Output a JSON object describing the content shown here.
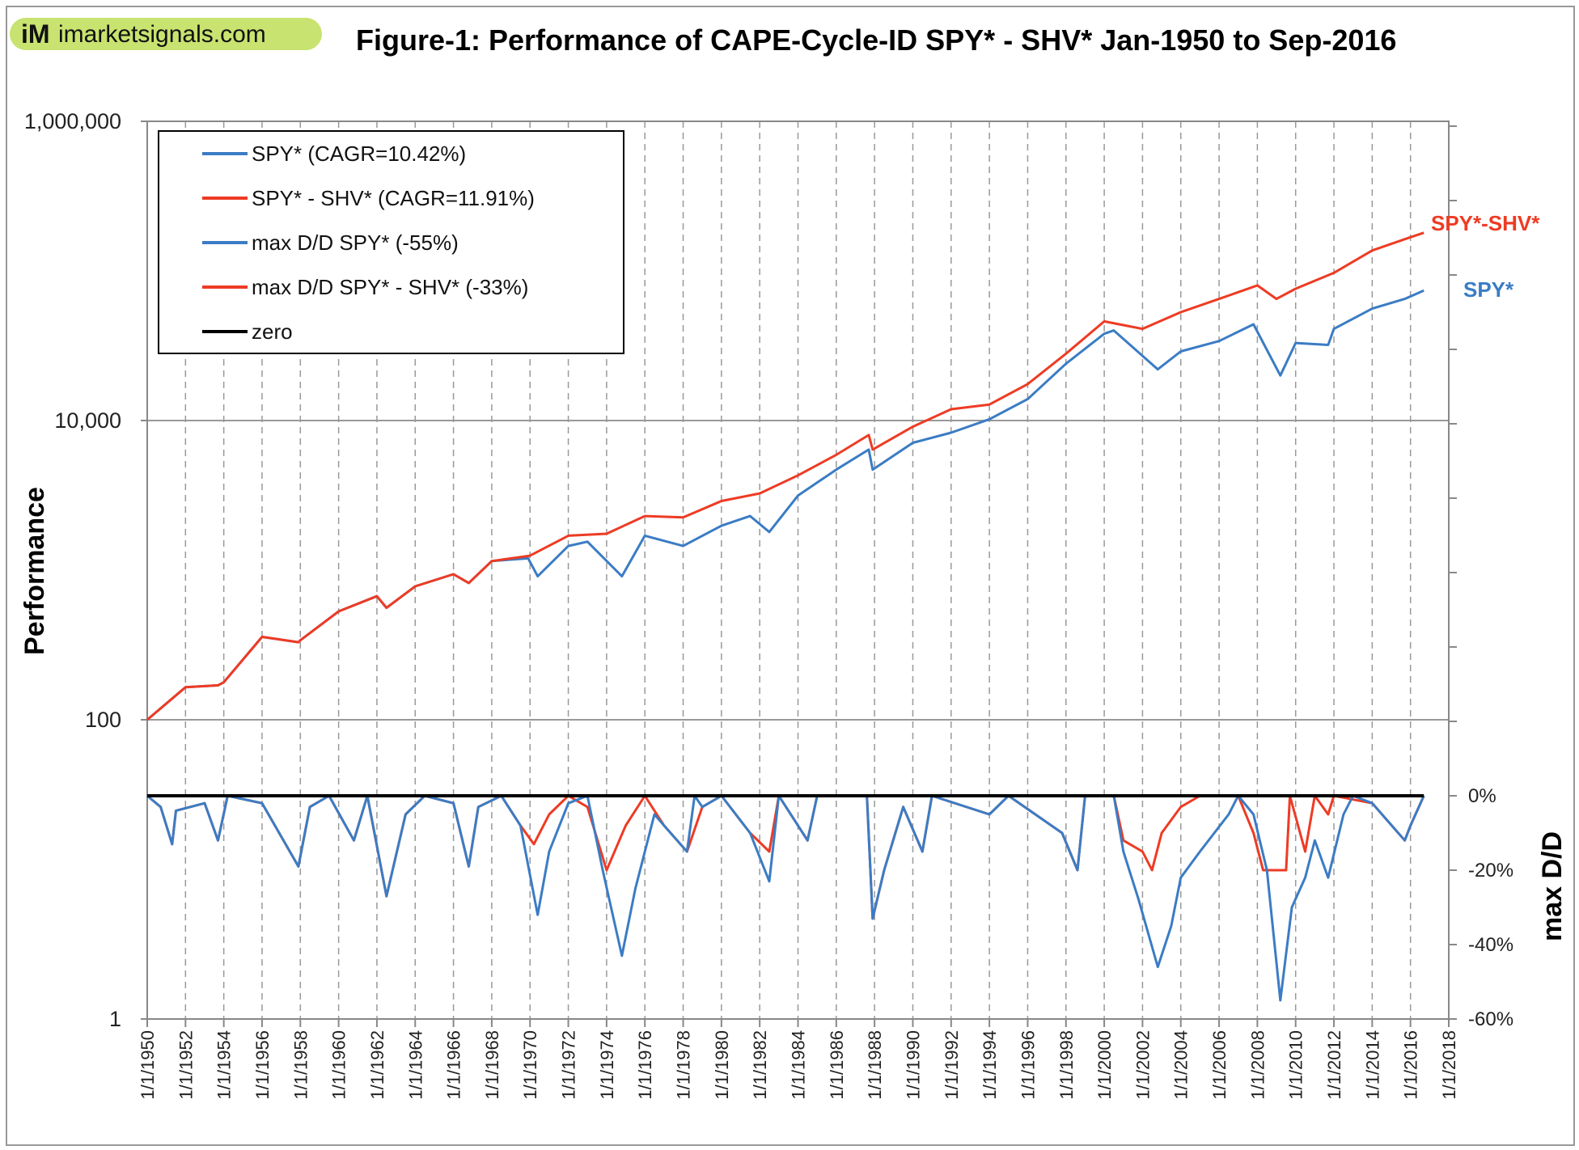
{
  "logo": {
    "text": "iM imarketsignals.com",
    "mark": "iM",
    "name": "imarketsignals.com",
    "bg_color": "#c8e36f"
  },
  "chart_data": {
    "title": "Figure-1:  Performance of CAPE-Cycle-ID  SPY* - SHV*   Jan-1950 to Sep-2016",
    "type": "line",
    "ylabel_left": "Performance",
    "ylabel_right": "max D/D",
    "left_axis": {
      "scale": "log",
      "range": [
        1,
        1000000
      ],
      "ticks": [
        {
          "v": 1000000,
          "label": "1,000,000"
        },
        {
          "v": 10000,
          "label": "10,000"
        },
        {
          "v": 100,
          "label": "100"
        },
        {
          "v": 1,
          "label": "1"
        }
      ]
    },
    "right_axis": {
      "range_percent": [
        -60,
        181
      ],
      "ticks": [
        {
          "v": 0,
          "label": "0%"
        },
        {
          "v": -20,
          "label": "-20%"
        },
        {
          "v": -40,
          "label": "-40%"
        },
        {
          "v": -60,
          "label": "-60%"
        }
      ]
    },
    "x_axis": {
      "range": [
        1950,
        2018
      ],
      "tick_labels": [
        "1/1/1950",
        "1/1/1952",
        "1/1/1954",
        "1/1/1956",
        "1/1/1958",
        "1/1/1960",
        "1/1/1962",
        "1/1/1964",
        "1/1/1966",
        "1/1/1968",
        "1/1/1970",
        "1/1/1972",
        "1/1/1974",
        "1/1/1976",
        "1/1/1978",
        "1/1/1980",
        "1/1/1982",
        "1/1/1984",
        "1/1/1986",
        "1/1/1988",
        "1/1/1990",
        "1/1/1992",
        "1/1/1994",
        "1/1/1996",
        "1/1/1998",
        "1/1/2000",
        "1/1/2002",
        "1/1/2004",
        "1/1/2006",
        "1/1/2008",
        "1/1/2010",
        "1/1/2012",
        "1/1/2014",
        "1/1/2016",
        "1/1/2018"
      ],
      "grid": "vertical dashed every 2 years"
    },
    "colors": {
      "blue": "#3b7cc4",
      "red": "#ee3b24",
      "zero": "#000000"
    },
    "legend": {
      "placement": "top-left",
      "entries": [
        {
          "label": "SPY*  (CAGR=10.42%)",
          "color": "#3b7cc4"
        },
        {
          "label": "SPY* - SHV*  (CAGR=11.91%)",
          "color": "#ee3b24"
        },
        {
          "label": "max D/D  SPY*  (-55%)",
          "color": "#3b7cc4"
        },
        {
          "label": "max D/D  SPY* - SHV*  (-33%)",
          "color": "#ee3b24"
        },
        {
          "label": "zero",
          "color": "#000000"
        }
      ]
    },
    "series_labels": {
      "red": "SPY*-SHV*",
      "blue": "SPY*"
    },
    "series": [
      {
        "name": "SPY*",
        "axis": "left",
        "color": "#3b7cc4",
        "points": [
          [
            1950,
            100
          ],
          [
            1952,
            165
          ],
          [
            1953.7,
            170
          ],
          [
            1954,
            178
          ],
          [
            1956,
            358
          ],
          [
            1957.9,
            330
          ],
          [
            1958,
            340
          ],
          [
            1960,
            530
          ],
          [
            1962,
            670
          ],
          [
            1962.5,
            560
          ],
          [
            1964,
            780
          ],
          [
            1966,
            940
          ],
          [
            1966.8,
            820
          ],
          [
            1968,
            1150
          ],
          [
            1969.9,
            1200
          ],
          [
            1970.4,
            910
          ],
          [
            1972,
            1450
          ],
          [
            1973,
            1550
          ],
          [
            1974.8,
            910
          ],
          [
            1976,
            1700
          ],
          [
            1978,
            1450
          ],
          [
            1980,
            1980
          ],
          [
            1981.5,
            2300
          ],
          [
            1982.5,
            1800
          ],
          [
            1984,
            3150
          ],
          [
            1986,
            4700
          ],
          [
            1987.7,
            6400
          ],
          [
            1987.9,
            4700
          ],
          [
            1990,
            7100
          ],
          [
            1992,
            8300
          ],
          [
            1994,
            10200
          ],
          [
            1996,
            13900
          ],
          [
            1998,
            24000
          ],
          [
            2000,
            38000
          ],
          [
            2000.5,
            40000
          ],
          [
            2002.8,
            22000
          ],
          [
            2004,
            29000
          ],
          [
            2006,
            34000
          ],
          [
            2007.8,
            44000
          ],
          [
            2009.2,
            20000
          ],
          [
            2010,
            33000
          ],
          [
            2011.7,
            32000
          ],
          [
            2012,
            41000
          ],
          [
            2014,
            56000
          ],
          [
            2015.7,
            65000
          ],
          [
            2016.7,
            74000
          ]
        ]
      },
      {
        "name": "SPY* - SHV*",
        "axis": "left",
        "color": "#ee3b24",
        "points": [
          [
            1950,
            100
          ],
          [
            1952,
            165
          ],
          [
            1953.7,
            170
          ],
          [
            1954,
            178
          ],
          [
            1956,
            358
          ],
          [
            1957.9,
            330
          ],
          [
            1958,
            340
          ],
          [
            1960,
            530
          ],
          [
            1962,
            670
          ],
          [
            1962.5,
            560
          ],
          [
            1964,
            780
          ],
          [
            1966,
            940
          ],
          [
            1966.8,
            820
          ],
          [
            1968,
            1150
          ],
          [
            1970,
            1250
          ],
          [
            1972,
            1700
          ],
          [
            1974,
            1750
          ],
          [
            1976,
            2300
          ],
          [
            1978,
            2250
          ],
          [
            1980,
            2900
          ],
          [
            1982,
            3260
          ],
          [
            1984,
            4300
          ],
          [
            1986,
            5900
          ],
          [
            1987.7,
            8000
          ],
          [
            1987.9,
            6400
          ],
          [
            1990,
            9100
          ],
          [
            1992,
            11900
          ],
          [
            1994,
            12800
          ],
          [
            1996,
            17500
          ],
          [
            1998,
            28000
          ],
          [
            2000,
            46000
          ],
          [
            2002,
            41000
          ],
          [
            2004,
            53000
          ],
          [
            2006,
            65000
          ],
          [
            2008,
            80000
          ],
          [
            2009,
            65000
          ],
          [
            2010,
            76000
          ],
          [
            2012,
            97000
          ],
          [
            2014,
            137000
          ],
          [
            2016,
            168000
          ],
          [
            2016.7,
            180000
          ]
        ]
      },
      {
        "name": "max D/D SPY*",
        "axis": "right",
        "color": "#3b7cc4",
        "points": [
          [
            1950,
            0
          ],
          [
            1950.7,
            -3
          ],
          [
            1951.3,
            -13
          ],
          [
            1951.5,
            -4
          ],
          [
            1953,
            -2
          ],
          [
            1953.7,
            -12
          ],
          [
            1954.2,
            0
          ],
          [
            1956,
            -2
          ],
          [
            1957.9,
            -19
          ],
          [
            1958.5,
            -3
          ],
          [
            1959.5,
            0
          ],
          [
            1960.8,
            -12
          ],
          [
            1961.5,
            0
          ],
          [
            1962.5,
            -27
          ],
          [
            1963.5,
            -5
          ],
          [
            1964.5,
            0
          ],
          [
            1966,
            -2
          ],
          [
            1966.8,
            -19
          ],
          [
            1967.3,
            -3
          ],
          [
            1968.5,
            0
          ],
          [
            1969.5,
            -8
          ],
          [
            1970.4,
            -32
          ],
          [
            1971,
            -15
          ],
          [
            1972,
            -2
          ],
          [
            1973,
            0
          ],
          [
            1973.8,
            -20
          ],
          [
            1974.8,
            -43
          ],
          [
            1975.5,
            -25
          ],
          [
            1976.5,
            -5
          ],
          [
            1977,
            -8
          ],
          [
            1978.2,
            -15
          ],
          [
            1978.6,
            0
          ],
          [
            1979,
            -3
          ],
          [
            1980,
            0
          ],
          [
            1981.5,
            -10
          ],
          [
            1982.5,
            -23
          ],
          [
            1983,
            0
          ],
          [
            1984.5,
            -12
          ],
          [
            1985,
            0
          ],
          [
            1987.6,
            0
          ],
          [
            1987.9,
            -33
          ],
          [
            1988.5,
            -20
          ],
          [
            1989.5,
            -3
          ],
          [
            1990.5,
            -15
          ],
          [
            1991,
            0
          ],
          [
            1994,
            -5
          ],
          [
            1995,
            0
          ],
          [
            1997.8,
            -10
          ],
          [
            1998.6,
            -20
          ],
          [
            1999,
            0
          ],
          [
            2000.5,
            0
          ],
          [
            2001,
            -15
          ],
          [
            2001.8,
            -28
          ],
          [
            2002.8,
            -46
          ],
          [
            2003.5,
            -35
          ],
          [
            2004,
            -22
          ],
          [
            2005,
            -15
          ],
          [
            2006.5,
            -5
          ],
          [
            2007,
            0
          ],
          [
            2007.8,
            -5
          ],
          [
            2008.5,
            -20
          ],
          [
            2009.2,
            -55
          ],
          [
            2009.8,
            -30
          ],
          [
            2010.5,
            -22
          ],
          [
            2011,
            -12
          ],
          [
            2011.7,
            -22
          ],
          [
            2012.5,
            -5
          ],
          [
            2013,
            0
          ],
          [
            2014,
            -2
          ],
          [
            2015.7,
            -12
          ],
          [
            2016,
            -8
          ],
          [
            2016.7,
            0
          ]
        ]
      },
      {
        "name": "max D/D SPY* - SHV*",
        "axis": "right",
        "color": "#ee3b24",
        "points": [
          [
            1950,
            0
          ],
          [
            1950.7,
            -3
          ],
          [
            1951.3,
            -13
          ],
          [
            1951.5,
            -4
          ],
          [
            1953,
            -2
          ],
          [
            1953.7,
            -12
          ],
          [
            1954.2,
            0
          ],
          [
            1956,
            -2
          ],
          [
            1957.9,
            -19
          ],
          [
            1958.5,
            -3
          ],
          [
            1959.5,
            0
          ],
          [
            1960.8,
            -12
          ],
          [
            1961.5,
            0
          ],
          [
            1962.5,
            -27
          ],
          [
            1963.5,
            -5
          ],
          [
            1964.5,
            0
          ],
          [
            1966,
            -2
          ],
          [
            1966.8,
            -19
          ],
          [
            1967.3,
            -3
          ],
          [
            1968.5,
            0
          ],
          [
            1969.5,
            -8
          ],
          [
            1970.2,
            -13
          ],
          [
            1971,
            -5
          ],
          [
            1972,
            0
          ],
          [
            1973,
            -3
          ],
          [
            1974,
            -20
          ],
          [
            1975,
            -8
          ],
          [
            1976,
            0
          ],
          [
            1977,
            -8
          ],
          [
            1978.2,
            -15
          ],
          [
            1979,
            -3
          ],
          [
            1980,
            0
          ],
          [
            1981.5,
            -10
          ],
          [
            1982.5,
            -15
          ],
          [
            1983,
            0
          ],
          [
            1984.5,
            -12
          ],
          [
            1985,
            0
          ],
          [
            1987.6,
            0
          ],
          [
            1987.9,
            -33
          ],
          [
            1988.5,
            -20
          ],
          [
            1989.5,
            -3
          ],
          [
            1990.5,
            -15
          ],
          [
            1991,
            0
          ],
          [
            1994,
            -5
          ],
          [
            1995,
            0
          ],
          [
            1997.8,
            -10
          ],
          [
            1998.6,
            -20
          ],
          [
            1999,
            0
          ],
          [
            2000.5,
            0
          ],
          [
            2001,
            -12
          ],
          [
            2002,
            -15
          ],
          [
            2002.5,
            -20
          ],
          [
            2003,
            -10
          ],
          [
            2004,
            -3
          ],
          [
            2005,
            0
          ],
          [
            2007,
            0
          ],
          [
            2007.8,
            -10
          ],
          [
            2008.3,
            -20
          ],
          [
            2009.5,
            -20
          ],
          [
            2009.7,
            0
          ],
          [
            2010.5,
            -15
          ],
          [
            2011,
            0
          ],
          [
            2011.7,
            -5
          ],
          [
            2012,
            0
          ],
          [
            2014,
            -2
          ],
          [
            2015.7,
            -12
          ],
          [
            2016,
            -8
          ],
          [
            2016.7,
            0
          ]
        ]
      },
      {
        "name": "zero",
        "axis": "right",
        "color": "#000000",
        "points": [
          [
            1950,
            0
          ],
          [
            2016.7,
            0
          ]
        ]
      }
    ]
  }
}
